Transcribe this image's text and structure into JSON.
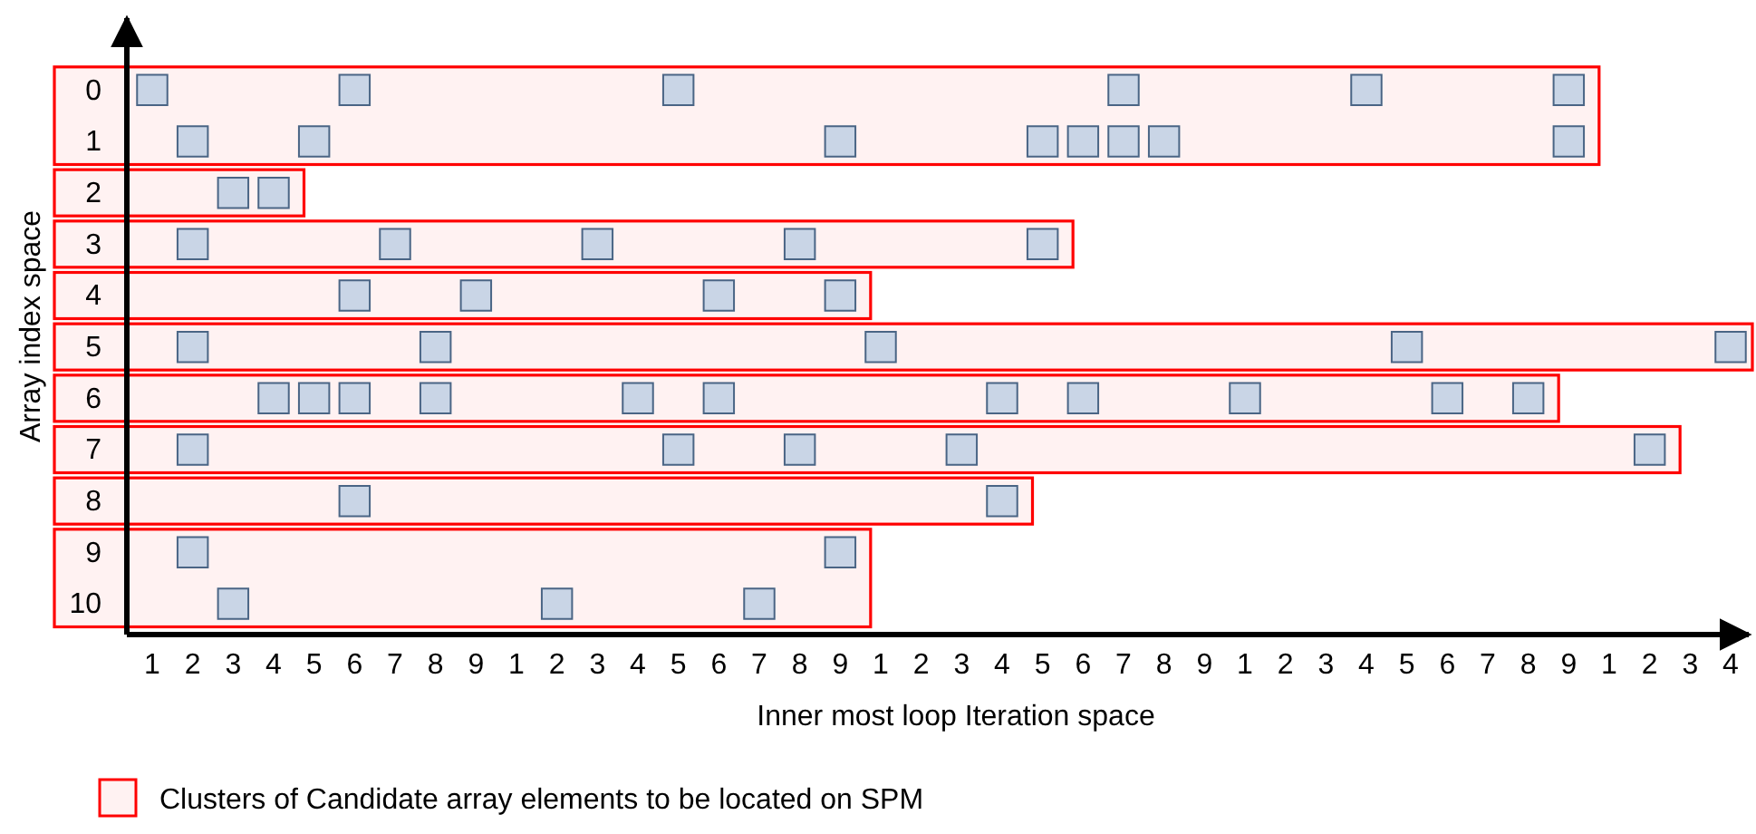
{
  "chart_data": {
    "type": "scatter",
    "xlabel": "Inner most loop Iteration space",
    "ylabel": "Array index space",
    "marker": "square",
    "grid": false,
    "categories": [
      "1",
      "2",
      "3",
      "4",
      "5",
      "6",
      "7",
      "8",
      "9",
      "1",
      "2",
      "3",
      "4",
      "5",
      "6",
      "7",
      "8",
      "9",
      "1",
      "2",
      "3",
      "4",
      "5",
      "6",
      "7",
      "8",
      "9",
      "1",
      "2",
      "3",
      "4",
      "5",
      "6",
      "7",
      "8",
      "9",
      "1",
      "2",
      "3",
      "4"
    ],
    "ylim": [
      10.6,
      -1.4
    ],
    "yticks": [
      0,
      1,
      2,
      3,
      4,
      5,
      6,
      7,
      8,
      9,
      10
    ],
    "series": [
      {
        "color": "#c9d5e6",
        "values": [
          0,
          null,
          null,
          null,
          null,
          0,
          null,
          null,
          null,
          null,
          null,
          null,
          null,
          0,
          null,
          null,
          null,
          null,
          null,
          null,
          null,
          null,
          null,
          null,
          0,
          null,
          null,
          null,
          null,
          null,
          0,
          null,
          null,
          null,
          null,
          0,
          null,
          null,
          null,
          null
        ]
      },
      {
        "color": "#c9d5e6",
        "values": [
          null,
          1,
          null,
          null,
          1,
          null,
          null,
          null,
          null,
          null,
          null,
          null,
          null,
          null,
          null,
          null,
          null,
          1,
          null,
          null,
          null,
          null,
          1,
          1,
          1,
          1,
          null,
          null,
          null,
          null,
          null,
          null,
          null,
          null,
          null,
          1,
          null,
          null,
          null,
          null
        ]
      },
      {
        "color": "#c9d5e6",
        "values": [
          null,
          null,
          2,
          2,
          null,
          null,
          null,
          null,
          null,
          null,
          null,
          null,
          null,
          null,
          null,
          null,
          null,
          null,
          null,
          null,
          null,
          null,
          null,
          null,
          null,
          null,
          null,
          null,
          null,
          null,
          null,
          null,
          null,
          null,
          null,
          null,
          null,
          null,
          null,
          null
        ]
      },
      {
        "color": "#c9d5e6",
        "values": [
          null,
          3,
          null,
          null,
          null,
          null,
          3,
          null,
          null,
          null,
          null,
          3,
          null,
          null,
          null,
          null,
          3,
          null,
          null,
          null,
          null,
          null,
          3,
          null,
          null,
          null,
          null,
          null,
          null,
          null,
          null,
          null,
          null,
          null,
          null,
          null,
          null,
          null,
          null,
          null
        ]
      },
      {
        "color": "#c9d5e6",
        "values": [
          null,
          null,
          null,
          null,
          null,
          4,
          null,
          null,
          4,
          null,
          null,
          null,
          null,
          null,
          4,
          null,
          null,
          4,
          null,
          null,
          null,
          null,
          null,
          null,
          null,
          null,
          null,
          null,
          null,
          null,
          null,
          null,
          null,
          null,
          null,
          null,
          null,
          null,
          null,
          null
        ]
      },
      {
        "color": "#c9d5e6",
        "values": [
          null,
          5,
          null,
          null,
          null,
          null,
          null,
          5,
          null,
          null,
          null,
          null,
          null,
          null,
          null,
          null,
          null,
          null,
          5,
          null,
          null,
          null,
          null,
          null,
          null,
          null,
          null,
          null,
          null,
          null,
          null,
          5,
          null,
          null,
          null,
          null,
          null,
          null,
          null,
          5
        ]
      },
      {
        "color": "#c9d5e6",
        "values": [
          null,
          null,
          null,
          6,
          6,
          6,
          null,
          6,
          null,
          null,
          null,
          null,
          6,
          null,
          6,
          null,
          null,
          null,
          null,
          null,
          null,
          6,
          null,
          6,
          null,
          null,
          null,
          6,
          null,
          null,
          null,
          null,
          6,
          null,
          6,
          null,
          null,
          null,
          null,
          null
        ]
      },
      {
        "color": "#c9d5e6",
        "values": [
          null,
          7,
          null,
          null,
          null,
          null,
          null,
          null,
          null,
          null,
          null,
          null,
          null,
          7,
          null,
          null,
          7,
          null,
          null,
          null,
          7,
          null,
          null,
          null,
          null,
          null,
          null,
          null,
          null,
          null,
          null,
          null,
          null,
          null,
          null,
          null,
          null,
          7,
          null,
          null
        ]
      },
      {
        "color": "#c9d5e6",
        "values": [
          null,
          null,
          null,
          null,
          null,
          8,
          null,
          null,
          null,
          null,
          null,
          null,
          null,
          null,
          null,
          null,
          null,
          null,
          null,
          null,
          null,
          8,
          null,
          null,
          null,
          null,
          null,
          null,
          null,
          null,
          null,
          null,
          null,
          null,
          null,
          null,
          null,
          null,
          null,
          null
        ]
      },
      {
        "color": "#c9d5e6",
        "values": [
          null,
          9,
          null,
          null,
          null,
          null,
          null,
          null,
          null,
          null,
          null,
          null,
          null,
          null,
          null,
          null,
          null,
          9,
          null,
          null,
          null,
          null,
          null,
          null,
          null,
          null,
          null,
          null,
          null,
          null,
          null,
          null,
          null,
          null,
          null,
          null,
          null,
          null,
          null,
          null
        ]
      },
      {
        "color": "#c9d5e6",
        "values": [
          null,
          null,
          10,
          null,
          null,
          null,
          null,
          null,
          null,
          null,
          10,
          null,
          null,
          null,
          null,
          10,
          null,
          null,
          null,
          null,
          null,
          null,
          null,
          null,
          null,
          null,
          null,
          null,
          null,
          null,
          null,
          null,
          null,
          null,
          null,
          null,
          null,
          null,
          null,
          null
        ]
      }
    ],
    "bands": [
      {
        "axis": "y",
        "from": -0.45,
        "to": 1.45,
        "color": "#ff0000",
        "label": "Clusters of Candidate array elements to be located on SPM"
      },
      {
        "axis": "y",
        "from": 1.55,
        "to": 2.45,
        "color": "#ff0000"
      },
      {
        "axis": "y",
        "from": 2.55,
        "to": 3.45,
        "color": "#ff0000"
      },
      {
        "axis": "y",
        "from": 3.55,
        "to": 4.45,
        "color": "#ff0000"
      },
      {
        "axis": "y",
        "from": 4.55,
        "to": 5.45,
        "color": "#ff0000"
      },
      {
        "axis": "y",
        "from": 5.55,
        "to": 6.45,
        "color": "#ff0000"
      },
      {
        "axis": "y",
        "from": 6.55,
        "to": 7.45,
        "color": "#ff0000"
      },
      {
        "axis": "y",
        "from": 7.55,
        "to": 8.45,
        "color": "#ff0000"
      },
      {
        "axis": "y",
        "from": 8.55,
        "to": 10.45,
        "color": "#ff0000"
      }
    ],
    "legend": "bottom left"
  }
}
